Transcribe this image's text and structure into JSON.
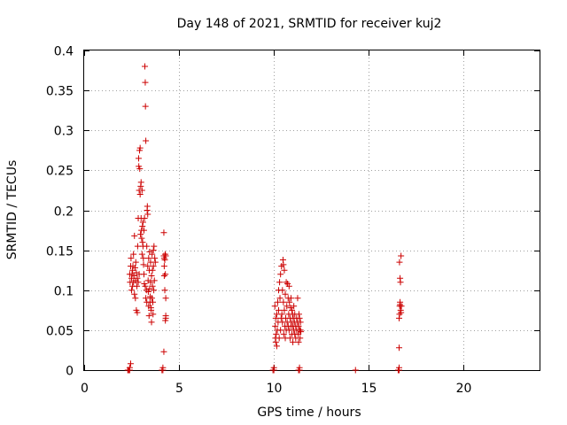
{
  "chart_data": {
    "type": "scatter",
    "title": "Day 148 of 2021, SRMTID for receiver kuj2",
    "xlabel": "GPS time / hours",
    "ylabel": "SRMTID / TECUs",
    "xlim": [
      0,
      24
    ],
    "ylim": [
      0,
      0.4
    ],
    "xticks": [
      0,
      5,
      10,
      15,
      20
    ],
    "xtick_labels": [
      "0",
      "5",
      "10",
      "15",
      "20"
    ],
    "yticks": [
      0,
      0.05,
      0.1,
      0.15,
      0.2,
      0.25,
      0.3,
      0.35,
      0.4
    ],
    "ytick_labels": [
      "0",
      "0.05",
      "0.1",
      "0.15",
      "0.2",
      "0.25",
      "0.3",
      "0.35",
      "0.4"
    ],
    "grid": true,
    "marker": "+",
    "series": [
      {
        "name": "SRMTID",
        "color": "#cc0000",
        "points": [
          [
            2.3,
            0.0
          ],
          [
            2.32,
            0.0
          ],
          [
            2.35,
            0.0
          ],
          [
            2.4,
            0.0
          ],
          [
            2.4,
            0.003
          ],
          [
            2.45,
            0.008
          ],
          [
            2.4,
            0.12
          ],
          [
            2.42,
            0.11
          ],
          [
            2.45,
            0.13
          ],
          [
            2.47,
            0.14
          ],
          [
            2.5,
            0.115
          ],
          [
            2.5,
            0.1
          ],
          [
            2.52,
            0.12
          ],
          [
            2.55,
            0.105
          ],
          [
            2.55,
            0.125
          ],
          [
            2.57,
            0.13
          ],
          [
            2.6,
            0.11
          ],
          [
            2.6,
            0.145
          ],
          [
            2.62,
            0.118
          ],
          [
            2.65,
            0.095
          ],
          [
            2.65,
            0.168
          ],
          [
            2.68,
            0.128
          ],
          [
            2.7,
            0.112
          ],
          [
            2.7,
            0.09
          ],
          [
            2.72,
            0.135
          ],
          [
            2.75,
            0.122
          ],
          [
            2.75,
            0.075
          ],
          [
            2.78,
            0.105
          ],
          [
            2.8,
            0.115
          ],
          [
            2.8,
            0.072
          ],
          [
            2.82,
            0.155
          ],
          [
            2.85,
            0.11
          ],
          [
            2.85,
            0.19
          ],
          [
            2.87,
            0.265
          ],
          [
            2.88,
            0.255
          ],
          [
            2.9,
            0.225
          ],
          [
            2.9,
            0.12
          ],
          [
            2.92,
            0.275
          ],
          [
            2.93,
            0.252
          ],
          [
            2.95,
            0.278
          ],
          [
            2.95,
            0.22
          ],
          [
            2.97,
            0.17
          ],
          [
            2.98,
            0.23
          ],
          [
            3.0,
            0.235
          ],
          [
            3.0,
            0.19
          ],
          [
            3.02,
            0.175
          ],
          [
            3.03,
            0.165
          ],
          [
            3.05,
            0.145
          ],
          [
            3.05,
            0.225
          ],
          [
            3.07,
            0.18
          ],
          [
            3.08,
            0.16
          ],
          [
            3.1,
            0.155
          ],
          [
            3.1,
            0.185
          ],
          [
            3.12,
            0.14
          ],
          [
            3.13,
            0.132
          ],
          [
            3.15,
            0.12
          ],
          [
            3.15,
            0.175
          ],
          [
            3.17,
            0.108
          ],
          [
            3.18,
            0.19
          ],
          [
            3.2,
            0.38
          ],
          [
            3.22,
            0.36
          ],
          [
            3.22,
            0.105
          ],
          [
            3.23,
            0.33
          ],
          [
            3.25,
            0.287
          ],
          [
            3.25,
            0.09
          ],
          [
            3.28,
            0.1
          ],
          [
            3.3,
            0.155
          ],
          [
            3.3,
            0.085
          ],
          [
            3.32,
            0.2
          ],
          [
            3.33,
            0.205
          ],
          [
            3.35,
            0.195
          ],
          [
            3.35,
            0.13
          ],
          [
            3.37,
            0.112
          ],
          [
            3.38,
            0.098
          ],
          [
            3.4,
            0.14
          ],
          [
            3.4,
            0.08
          ],
          [
            3.42,
            0.068
          ],
          [
            3.43,
            0.125
          ],
          [
            3.45,
            0.102
          ],
          [
            3.45,
            0.148
          ],
          [
            3.47,
            0.085
          ],
          [
            3.48,
            0.092
          ],
          [
            3.5,
            0.11
          ],
          [
            3.5,
            0.135
          ],
          [
            3.52,
            0.078
          ],
          [
            3.53,
            0.075
          ],
          [
            3.55,
            0.06
          ],
          [
            3.55,
            0.118
          ],
          [
            3.57,
            0.09
          ],
          [
            3.58,
            0.145
          ],
          [
            3.6,
            0.105
          ],
          [
            3.6,
            0.125
          ],
          [
            3.62,
            0.085
          ],
          [
            3.63,
            0.07
          ],
          [
            3.65,
            0.15
          ],
          [
            3.65,
            0.13
          ],
          [
            3.67,
            0.1
          ],
          [
            3.68,
            0.155
          ],
          [
            3.7,
            0.112
          ],
          [
            3.72,
            0.14
          ],
          [
            3.75,
            0.135
          ],
          [
            4.1,
            0.0
          ],
          [
            4.15,
            0.0
          ],
          [
            4.15,
            0.003
          ],
          [
            4.2,
            0.172
          ],
          [
            4.2,
            0.143
          ],
          [
            4.22,
            0.14
          ],
          [
            4.22,
            0.118
          ],
          [
            4.25,
            0.1
          ],
          [
            4.25,
            0.138
          ],
          [
            4.27,
            0.145
          ],
          [
            4.28,
            0.12
          ],
          [
            4.3,
            0.09
          ],
          [
            4.3,
            0.065
          ],
          [
            4.28,
            0.062
          ],
          [
            4.3,
            0.068
          ],
          [
            4.3,
            0.143
          ],
          [
            4.2,
            0.023
          ],
          [
            4.22,
            0.13
          ],
          [
            9.95,
            0.0
          ],
          [
            10.0,
            0.0
          ],
          [
            10.0,
            0.003
          ],
          [
            10.05,
            0.08
          ],
          [
            10.07,
            0.055
          ],
          [
            10.08,
            0.04
          ],
          [
            10.1,
            0.035
          ],
          [
            10.1,
            0.065
          ],
          [
            10.12,
            0.045
          ],
          [
            10.15,
            0.07
          ],
          [
            10.15,
            0.03
          ],
          [
            10.18,
            0.05
          ],
          [
            10.2,
            0.085
          ],
          [
            10.22,
            0.06
          ],
          [
            10.25,
            0.1
          ],
          [
            10.25,
            0.075
          ],
          [
            10.28,
            0.04
          ],
          [
            10.3,
            0.11
          ],
          [
            10.32,
            0.09
          ],
          [
            10.35,
            0.05
          ],
          [
            10.35,
            0.12
          ],
          [
            10.38,
            0.065
          ],
          [
            10.4,
            0.13
          ],
          [
            10.42,
            0.07
          ],
          [
            10.45,
            0.1
          ],
          [
            10.45,
            0.06
          ],
          [
            10.48,
            0.138
          ],
          [
            10.5,
            0.132
          ],
          [
            10.5,
            0.085
          ],
          [
            10.52,
            0.045
          ],
          [
            10.55,
            0.125
          ],
          [
            10.55,
            0.075
          ],
          [
            10.58,
            0.055
          ],
          [
            10.6,
            0.095
          ],
          [
            10.6,
            0.04
          ],
          [
            10.62,
            0.065
          ],
          [
            10.65,
            0.11
          ],
          [
            10.65,
            0.05
          ],
          [
            10.68,
            0.08
          ],
          [
            10.7,
            0.06
          ],
          [
            10.72,
            0.108
          ],
          [
            10.75,
            0.055
          ],
          [
            10.75,
            0.09
          ],
          [
            10.78,
            0.07
          ],
          [
            10.8,
            0.105
          ],
          [
            10.8,
            0.05
          ],
          [
            10.82,
            0.085
          ],
          [
            10.85,
            0.065
          ],
          [
            10.85,
            0.04
          ],
          [
            10.88,
            0.078
          ],
          [
            10.9,
            0.055
          ],
          [
            10.9,
            0.09
          ],
          [
            10.92,
            0.06
          ],
          [
            10.95,
            0.045
          ],
          [
            10.95,
            0.075
          ],
          [
            10.98,
            0.07
          ],
          [
            11.0,
            0.055
          ],
          [
            11.0,
            0.035
          ],
          [
            11.02,
            0.065
          ],
          [
            11.05,
            0.05
          ],
          [
            11.05,
            0.08
          ],
          [
            11.08,
            0.06
          ],
          [
            11.1,
            0.045
          ],
          [
            11.1,
            0.07
          ],
          [
            11.15,
            0.055
          ],
          [
            11.15,
            0.04
          ],
          [
            11.2,
            0.065
          ],
          [
            11.2,
            0.05
          ],
          [
            11.25,
            0.06
          ],
          [
            11.25,
            0.09
          ],
          [
            11.28,
            0.045
          ],
          [
            11.3,
            0.055
          ],
          [
            11.3,
            0.035
          ],
          [
            11.32,
            0.07
          ],
          [
            11.35,
            0.05
          ],
          [
            11.35,
            0.065
          ],
          [
            11.38,
            0.04
          ],
          [
            11.4,
            0.06
          ],
          [
            11.4,
            0.05
          ],
          [
            11.42,
            0.048
          ],
          [
            11.3,
            0.0
          ],
          [
            11.35,
            0.0
          ],
          [
            11.35,
            0.003
          ],
          [
            14.3,
            0.0
          ],
          [
            16.55,
            0.0
          ],
          [
            16.6,
            0.0
          ],
          [
            16.6,
            0.003
          ],
          [
            16.6,
            0.065
          ],
          [
            16.62,
            0.07
          ],
          [
            16.63,
            0.08
          ],
          [
            16.65,
            0.085
          ],
          [
            16.65,
            0.115
          ],
          [
            16.67,
            0.11
          ],
          [
            16.68,
            0.075
          ],
          [
            16.62,
            0.135
          ],
          [
            16.7,
            0.143
          ],
          [
            16.6,
            0.028
          ],
          [
            16.65,
            0.082
          ],
          [
            16.7,
            0.072
          ],
          [
            16.72,
            0.08
          ]
        ]
      }
    ]
  }
}
